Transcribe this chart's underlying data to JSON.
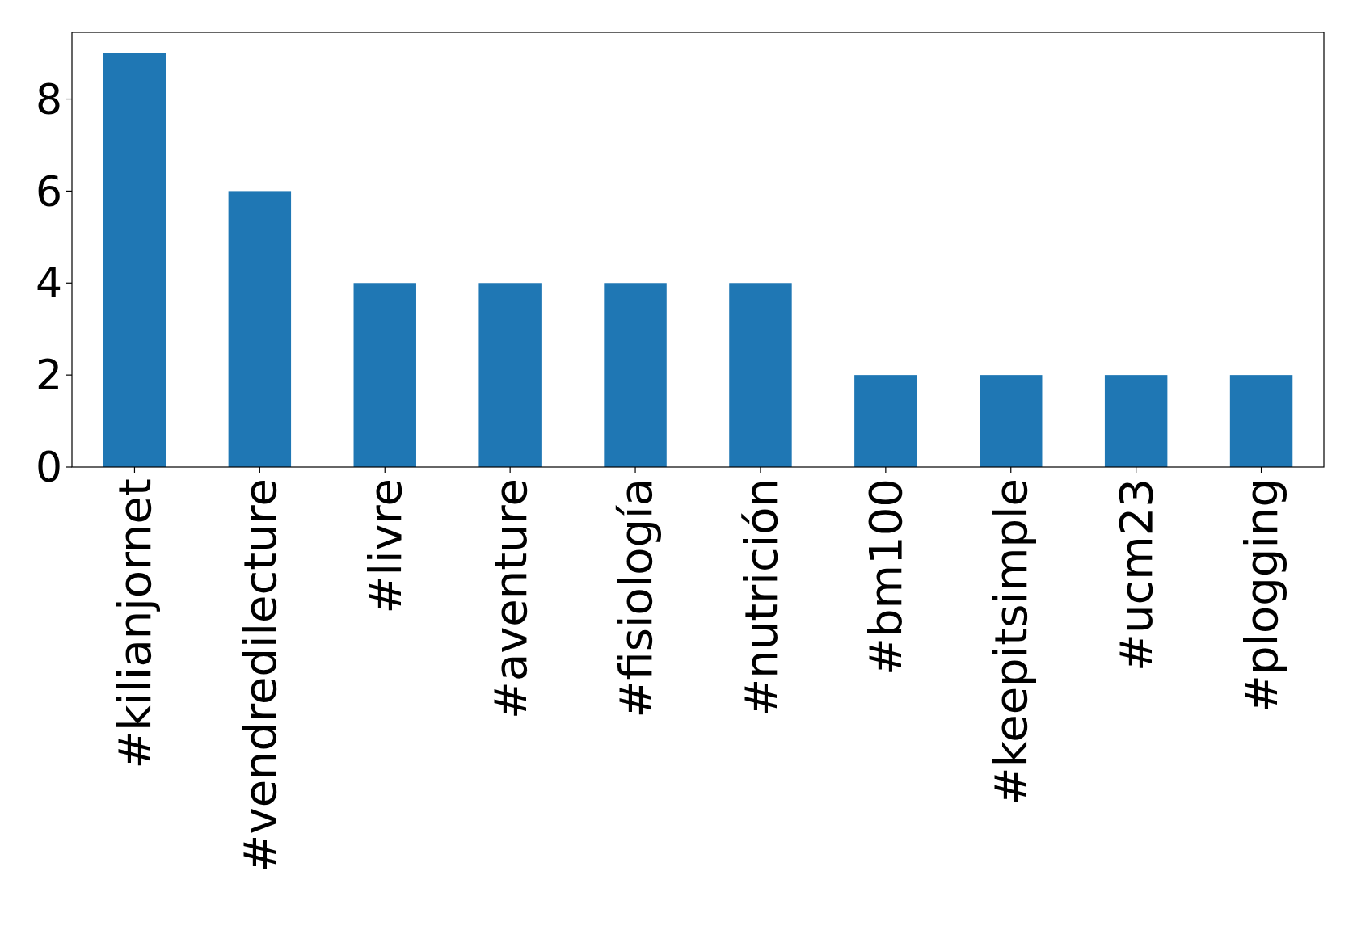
{
  "chart_data": {
    "type": "bar",
    "categories": [
      "#kilianjornet",
      "#vendredilecture",
      "#livre",
      "#aventure",
      "#fisiología",
      "#nutrición",
      "#bm100",
      "#keepitsimple",
      "#ucm23",
      "#plogging"
    ],
    "values": [
      9,
      6,
      4,
      4,
      4,
      4,
      2,
      2,
      2,
      2
    ],
    "color": "#1f77b4",
    "ylim": [
      0,
      9.45
    ],
    "yticks": [
      0,
      2,
      4,
      6,
      8
    ],
    "grid": false
  }
}
